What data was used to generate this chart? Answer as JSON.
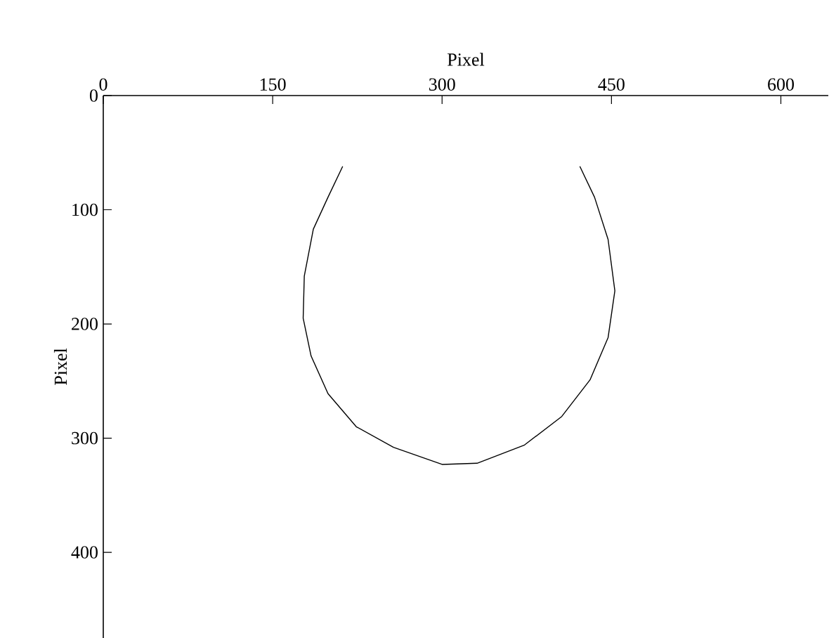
{
  "chart_data": {
    "type": "line",
    "xlabel": "Pixel",
    "ylabel": "Pixel",
    "x": [
      212,
      199,
      186,
      178,
      177,
      184,
      199,
      224,
      257,
      300,
      331,
      373,
      406,
      431,
      447,
      453,
      447,
      435,
      422
    ],
    "series": [
      {
        "color": "#000000",
        "values": [
          62,
          89,
          117,
          158,
          195,
          228,
          261,
          290,
          308,
          323,
          322,
          306,
          281,
          249,
          212,
          171,
          126,
          89,
          62
        ]
      }
    ],
    "xlim": [
      0,
      642
    ],
    "ylim": [
      475,
      0
    ],
    "xticks": [
      0,
      150,
      300,
      450,
      600
    ],
    "yticks": [
      0,
      100,
      200,
      300,
      400
    ],
    "marker": "none",
    "line_style": "solid"
  }
}
